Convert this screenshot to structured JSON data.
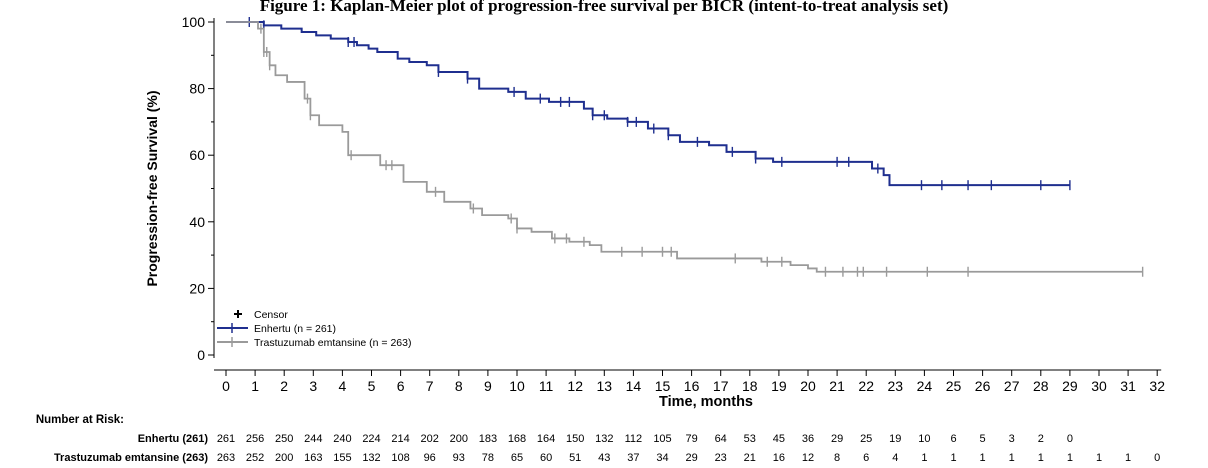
{
  "figure_title": "Figure 1: Kaplan-Meier plot of progression-free survival per BICR (intent-to-treat analysis set)",
  "chart_data": {
    "type": "line",
    "subtype": "kaplan-meier",
    "xlabel": "Time,  months",
    "ylabel": "Progression-free Survival (%)",
    "xlim": [
      0,
      32
    ],
    "ylim": [
      0,
      100
    ],
    "xticks": [
      "0",
      "1",
      "2",
      "3",
      "4",
      "5",
      "6",
      "7",
      "8",
      "9",
      "10",
      "11",
      "12",
      "13",
      "14",
      "15",
      "16",
      "17",
      "18",
      "19",
      "20",
      "21",
      "22",
      "23",
      "24",
      "25",
      "26",
      "27",
      "28",
      "29",
      "30",
      "31",
      "32"
    ],
    "yticks": [
      "0",
      "20",
      "40",
      "60",
      "80",
      "100"
    ],
    "grid": false,
    "legend": {
      "placement": "bottom-left",
      "entries": [
        "Censor",
        "Enhertu (n = 261)",
        "Trastuzumab emtansine (n = 263)"
      ]
    },
    "series": [
      {
        "name": "Enhertu (n = 261)",
        "color": "#1f2f8f",
        "steps": [
          [
            0,
            100
          ],
          [
            1.3,
            99
          ],
          [
            1.9,
            98
          ],
          [
            2.6,
            97
          ],
          [
            3.1,
            96
          ],
          [
            3.6,
            95
          ],
          [
            4.2,
            94
          ],
          [
            4.5,
            93
          ],
          [
            4.9,
            92
          ],
          [
            5.2,
            91
          ],
          [
            5.9,
            89
          ],
          [
            6.3,
            88
          ],
          [
            6.9,
            87
          ],
          [
            7.3,
            85
          ],
          [
            8.3,
            83
          ],
          [
            8.7,
            80
          ],
          [
            9.7,
            79
          ],
          [
            10.3,
            77
          ],
          [
            11.1,
            76
          ],
          [
            12.3,
            74
          ],
          [
            12.6,
            72
          ],
          [
            13.1,
            71
          ],
          [
            13.8,
            70
          ],
          [
            14.5,
            68
          ],
          [
            15.2,
            66
          ],
          [
            15.6,
            64
          ],
          [
            16.6,
            63
          ],
          [
            17.2,
            61
          ],
          [
            18.2,
            59
          ],
          [
            18.8,
            58
          ],
          [
            22.2,
            56
          ],
          [
            22.6,
            54
          ],
          [
            22.8,
            51
          ],
          [
            29.0,
            51
          ]
        ],
        "censor": [
          0.8,
          1.3,
          4.2,
          4.4,
          7.3,
          8.3,
          9.9,
          10.8,
          11.5,
          11.8,
          12.6,
          13.0,
          13.8,
          14.1,
          14.7,
          15.2,
          16.2,
          17.4,
          18.2,
          19.1,
          21.0,
          21.4,
          22.4,
          23.9,
          24.6,
          25.5,
          26.3,
          28.0,
          29.0
        ]
      },
      {
        "name": "Trastuzumab emtansine (n = 263)",
        "color": "#9a9a9a",
        "steps": [
          [
            0,
            100
          ],
          [
            1.1,
            98
          ],
          [
            1.3,
            91
          ],
          [
            1.5,
            87
          ],
          [
            1.7,
            84
          ],
          [
            2.1,
            82
          ],
          [
            2.7,
            77
          ],
          [
            2.9,
            72
          ],
          [
            3.2,
            69
          ],
          [
            4.0,
            67
          ],
          [
            4.2,
            60
          ],
          [
            5.3,
            57
          ],
          [
            6.1,
            52
          ],
          [
            6.9,
            49
          ],
          [
            7.5,
            46
          ],
          [
            8.4,
            44
          ],
          [
            8.8,
            42
          ],
          [
            9.7,
            41
          ],
          [
            10.0,
            38
          ],
          [
            10.5,
            37
          ],
          [
            11.2,
            35
          ],
          [
            11.8,
            34
          ],
          [
            12.5,
            33
          ],
          [
            12.9,
            31
          ],
          [
            15.5,
            29
          ],
          [
            18.4,
            28
          ],
          [
            19.4,
            27
          ],
          [
            20.0,
            26
          ],
          [
            20.3,
            25
          ],
          [
            31.5,
            25
          ]
        ],
        "censor": [
          1.2,
          1.3,
          1.4,
          1.5,
          2.8,
          2.9,
          4.3,
          5.5,
          5.7,
          7.2,
          8.5,
          9.8,
          10.0,
          11.3,
          11.7,
          12.3,
          13.6,
          14.3,
          15.0,
          15.3,
          17.5,
          18.6,
          19.1,
          20.6,
          21.2,
          21.7,
          21.9,
          22.7,
          24.1,
          25.5,
          31.5
        ]
      }
    ]
  },
  "risk_table": {
    "header": "Number at Risk:",
    "rows": [
      {
        "label": "Enhertu (261)",
        "values": [
          "261",
          "256",
          "250",
          "244",
          "240",
          "224",
          "214",
          "202",
          "200",
          "183",
          "168",
          "164",
          "150",
          "132",
          "112",
          "105",
          "79",
          "64",
          "53",
          "45",
          "36",
          "29",
          "25",
          "19",
          "10",
          "6",
          "5",
          "3",
          "2",
          "0"
        ]
      },
      {
        "label": "Trastuzumab emtansine (263)",
        "values": [
          "263",
          "252",
          "200",
          "163",
          "155",
          "132",
          "108",
          "96",
          "93",
          "78",
          "65",
          "60",
          "51",
          "43",
          "37",
          "34",
          "29",
          "23",
          "21",
          "16",
          "12",
          "8",
          "6",
          "4",
          "1",
          "1",
          "1",
          "1",
          "1",
          "1",
          "1",
          "1",
          "0"
        ]
      }
    ]
  }
}
